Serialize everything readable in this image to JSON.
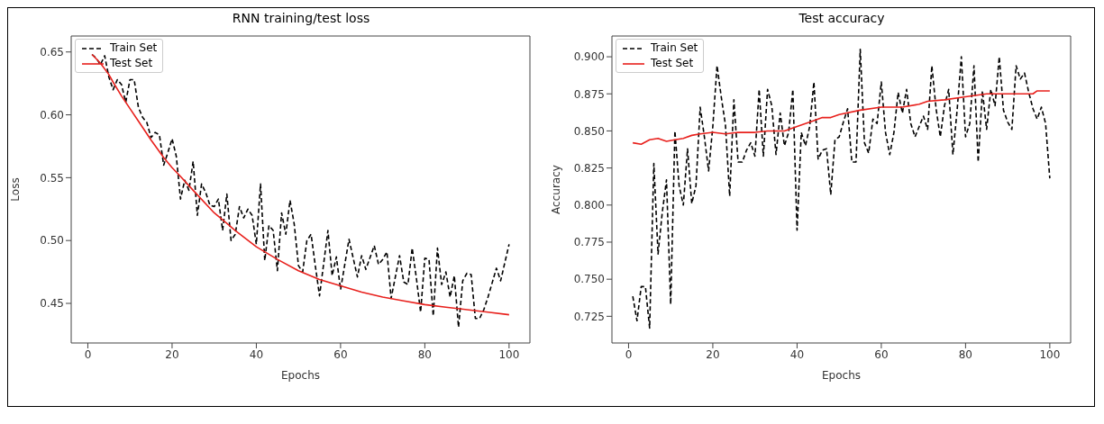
{
  "chart_data": [
    {
      "type": "line",
      "title": "RNN training/test loss",
      "xlabel": "Epochs",
      "ylabel": "Loss",
      "xlim": [
        -3.95,
        104.95
      ],
      "xticks": [
        0,
        20,
        40,
        60,
        80,
        100
      ],
      "ylim": [
        0.4185,
        0.6627
      ],
      "yticks": [
        0.45,
        {
          "value": 0.5,
          "label": "0.50"
        },
        0.55,
        {
          "value": 0.6,
          "label": "0.60"
        },
        0.65
      ],
      "legend": "top left",
      "marker": "none",
      "series": [
        {
          "name": "Train Set",
          "color": "#000000",
          "line_style": "dashed",
          "x": [
            1,
            2,
            3,
            4,
            5,
            6,
            7,
            8,
            9,
            10,
            11,
            12,
            13,
            14,
            15,
            16,
            17,
            18,
            19,
            20,
            21,
            22,
            23,
            24,
            25,
            26,
            27,
            28,
            29,
            30,
            31,
            32,
            33,
            34,
            35,
            36,
            37,
            38,
            39,
            40,
            41,
            42,
            43,
            44,
            45,
            46,
            47,
            48,
            49,
            50,
            51,
            52,
            53,
            54,
            55,
            57,
            58,
            59,
            60,
            62,
            64,
            65,
            66,
            68,
            69,
            70,
            71,
            72,
            74,
            75,
            76,
            77,
            78,
            79,
            80,
            81,
            82,
            83,
            84,
            85,
            86,
            87,
            88,
            89,
            90,
            91,
            92,
            93,
            94,
            95,
            97,
            98,
            100
          ],
          "values": [
            0.648,
            0.645,
            0.64,
            0.647,
            0.63,
            0.62,
            0.628,
            0.624,
            0.61,
            0.628,
            0.628,
            0.606,
            0.598,
            0.594,
            0.582,
            0.586,
            0.584,
            0.56,
            0.57,
            0.581,
            0.567,
            0.533,
            0.548,
            0.54,
            0.563,
            0.52,
            0.545,
            0.538,
            0.528,
            0.527,
            0.533,
            0.508,
            0.537,
            0.5,
            0.505,
            0.527,
            0.518,
            0.525,
            0.52,
            0.497,
            0.545,
            0.484,
            0.512,
            0.508,
            0.476,
            0.522,
            0.505,
            0.532,
            0.513,
            0.48,
            0.475,
            0.5,
            0.505,
            0.48,
            0.456,
            0.508,
            0.472,
            0.487,
            0.461,
            0.501,
            0.471,
            0.488,
            0.477,
            0.496,
            0.481,
            0.485,
            0.491,
            0.454,
            0.488,
            0.467,
            0.465,
            0.494,
            0.47,
            0.443,
            0.486,
            0.485,
            0.44,
            0.494,
            0.465,
            0.475,
            0.455,
            0.472,
            0.431,
            0.468,
            0.474,
            0.473,
            0.438,
            0.438,
            0.445,
            0.455,
            0.478,
            0.468,
            0.497
          ]
        },
        {
          "name": "Test Set",
          "color": "#e8201c",
          "line_style": "solid",
          "x": [
            1,
            3,
            5,
            6,
            8,
            10,
            12,
            15,
            18,
            20,
            22,
            25,
            30,
            35,
            40,
            45,
            50,
            55,
            60,
            65,
            70,
            75,
            80,
            85,
            90,
            95,
            100
          ],
          "values": [
            0.648,
            0.641,
            0.632,
            0.626,
            0.615,
            0.605,
            0.595,
            0.58,
            0.566,
            0.558,
            0.551,
            0.54,
            0.522,
            0.508,
            0.495,
            0.485,
            0.476,
            0.469,
            0.464,
            0.459,
            0.455,
            0.452,
            0.449,
            0.447,
            0.445,
            0.443,
            0.441
          ]
        }
      ]
    },
    {
      "type": "line",
      "title": "Test accuracy",
      "xlabel": "Epochs",
      "ylabel": "Accuracy",
      "xlim": [
        -3.95,
        104.95
      ],
      "xticks": [
        0,
        20,
        40,
        60,
        80,
        100
      ],
      "ylim": [
        0.707,
        0.914
      ],
      "yticks": [
        0.725,
        {
          "value": 0.75,
          "label": "0.750"
        },
        0.775,
        {
          "value": 0.8,
          "label": "0.800"
        },
        0.825,
        {
          "value": 0.85,
          "label": "0.850"
        },
        0.875,
        {
          "value": 0.9,
          "label": "0.900"
        }
      ],
      "legend": "top left",
      "marker": "none",
      "series": [
        {
          "name": "Train Set",
          "color": "#000000",
          "line_style": "dashed",
          "x": [
            1,
            2,
            3,
            4,
            5,
            6,
            7,
            8,
            9,
            10,
            11,
            12,
            13,
            14,
            15,
            16,
            17,
            18,
            19,
            20,
            21,
            22,
            23,
            24,
            25,
            26,
            27,
            28,
            29,
            30,
            31,
            32,
            33,
            34,
            35,
            36,
            37,
            38,
            39,
            40,
            41,
            42,
            43,
            44,
            45,
            46,
            47,
            48,
            49,
            50,
            51,
            52,
            53,
            54,
            55,
            56,
            57,
            58,
            59,
            60,
            61,
            62,
            63,
            64,
            65,
            66,
            67,
            68,
            69,
            70,
            71,
            72,
            73,
            74,
            75,
            76,
            77,
            78,
            79,
            80,
            81,
            82,
            83,
            84,
            85,
            86,
            87,
            88,
            89,
            90,
            91,
            92,
            93,
            94,
            95,
            96,
            97,
            98,
            99,
            100
          ],
          "values": [
            0.7385,
            0.722,
            0.745,
            0.745,
            0.717,
            0.828,
            0.767,
            0.795,
            0.817,
            0.733,
            0.85,
            0.813,
            0.8,
            0.838,
            0.801,
            0.813,
            0.866,
            0.846,
            0.823,
            0.853,
            0.894,
            0.873,
            0.854,
            0.806,
            0.871,
            0.829,
            0.829,
            0.837,
            0.842,
            0.833,
            0.878,
            0.833,
            0.878,
            0.867,
            0.834,
            0.862,
            0.84,
            0.849,
            0.878,
            0.783,
            0.849,
            0.84,
            0.853,
            0.883,
            0.831,
            0.837,
            0.838,
            0.807,
            0.844,
            0.846,
            0.856,
            0.865,
            0.829,
            0.829,
            0.905,
            0.842,
            0.835,
            0.858,
            0.855,
            0.883,
            0.849,
            0.834,
            0.849,
            0.876,
            0.862,
            0.878,
            0.855,
            0.846,
            0.853,
            0.86,
            0.851,
            0.894,
            0.865,
            0.846,
            0.867,
            0.878,
            0.834,
            0.864,
            0.9,
            0.846,
            0.855,
            0.894,
            0.829,
            0.877,
            0.851,
            0.878,
            0.867,
            0.9,
            0.864,
            0.856,
            0.851,
            0.894,
            0.885,
            0.889,
            0.876,
            0.865,
            0.858,
            0.866,
            0.855,
            0.818
          ]
        },
        {
          "name": "Test Set",
          "color": "#e8201c",
          "line_style": "solid",
          "x": [
            1,
            3,
            5,
            7,
            9,
            11,
            13,
            15,
            17,
            20,
            23,
            26,
            30,
            33,
            37,
            40,
            44,
            46,
            48,
            50,
            55,
            60,
            65,
            69,
            71,
            75,
            80,
            85,
            90,
            96,
            97,
            100
          ],
          "values": [
            0.842,
            0.841,
            0.844,
            0.845,
            0.843,
            0.844,
            0.845,
            0.847,
            0.848,
            0.849,
            0.848,
            0.849,
            0.849,
            0.85,
            0.85,
            0.853,
            0.857,
            0.859,
            0.859,
            0.861,
            0.864,
            0.866,
            0.866,
            0.868,
            0.87,
            0.871,
            0.873,
            0.875,
            0.875,
            0.875,
            0.877,
            0.877
          ]
        }
      ]
    }
  ]
}
